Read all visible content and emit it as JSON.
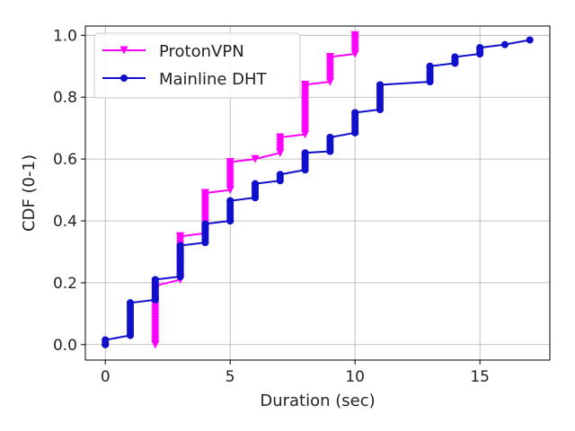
{
  "chart_data": {
    "type": "line",
    "title": "",
    "xlabel": "Duration (sec)",
    "ylabel": "CDF (0-1)",
    "xlim": [
      -0.8,
      17.8
    ],
    "ylim": [
      -0.05,
      1.03
    ],
    "xticks": [
      0,
      5,
      10,
      15
    ],
    "yticks": [
      0.0,
      0.2,
      0.4,
      0.6,
      0.8,
      1.0
    ],
    "ytick_labels": [
      "0.0",
      "0.2",
      "0.4",
      "0.6",
      "0.8",
      "1.0"
    ],
    "grid": true,
    "legend_position": "upper-left",
    "series": [
      {
        "name": "ProtonVPN",
        "color": "#ff00ff",
        "marker": "triangle-down",
        "x": [
          2,
          2,
          3,
          3,
          4,
          4,
          5,
          5,
          6,
          7,
          7,
          8,
          8,
          9,
          9,
          10,
          10
        ],
        "y": [
          0.0,
          0.19,
          0.21,
          0.35,
          0.36,
          0.49,
          0.5,
          0.59,
          0.6,
          0.62,
          0.67,
          0.68,
          0.84,
          0.85,
          0.93,
          0.94,
          1.0
        ]
      },
      {
        "name": "Mainline DHT",
        "color": "#1010cc",
        "marker": "circle",
        "x": [
          0,
          0,
          1,
          1,
          2,
          2,
          3,
          3,
          4,
          4,
          5,
          5,
          6,
          6,
          7,
          7,
          8,
          8,
          9,
          9,
          10,
          10,
          11,
          11,
          13,
          13,
          14,
          14,
          15,
          15,
          16,
          17
        ],
        "y": [
          0.0,
          0.015,
          0.03,
          0.135,
          0.145,
          0.21,
          0.22,
          0.32,
          0.33,
          0.39,
          0.4,
          0.465,
          0.475,
          0.52,
          0.53,
          0.55,
          0.565,
          0.62,
          0.625,
          0.67,
          0.685,
          0.75,
          0.76,
          0.84,
          0.85,
          0.9,
          0.91,
          0.93,
          0.94,
          0.96,
          0.97,
          0.985
        ]
      }
    ]
  }
}
